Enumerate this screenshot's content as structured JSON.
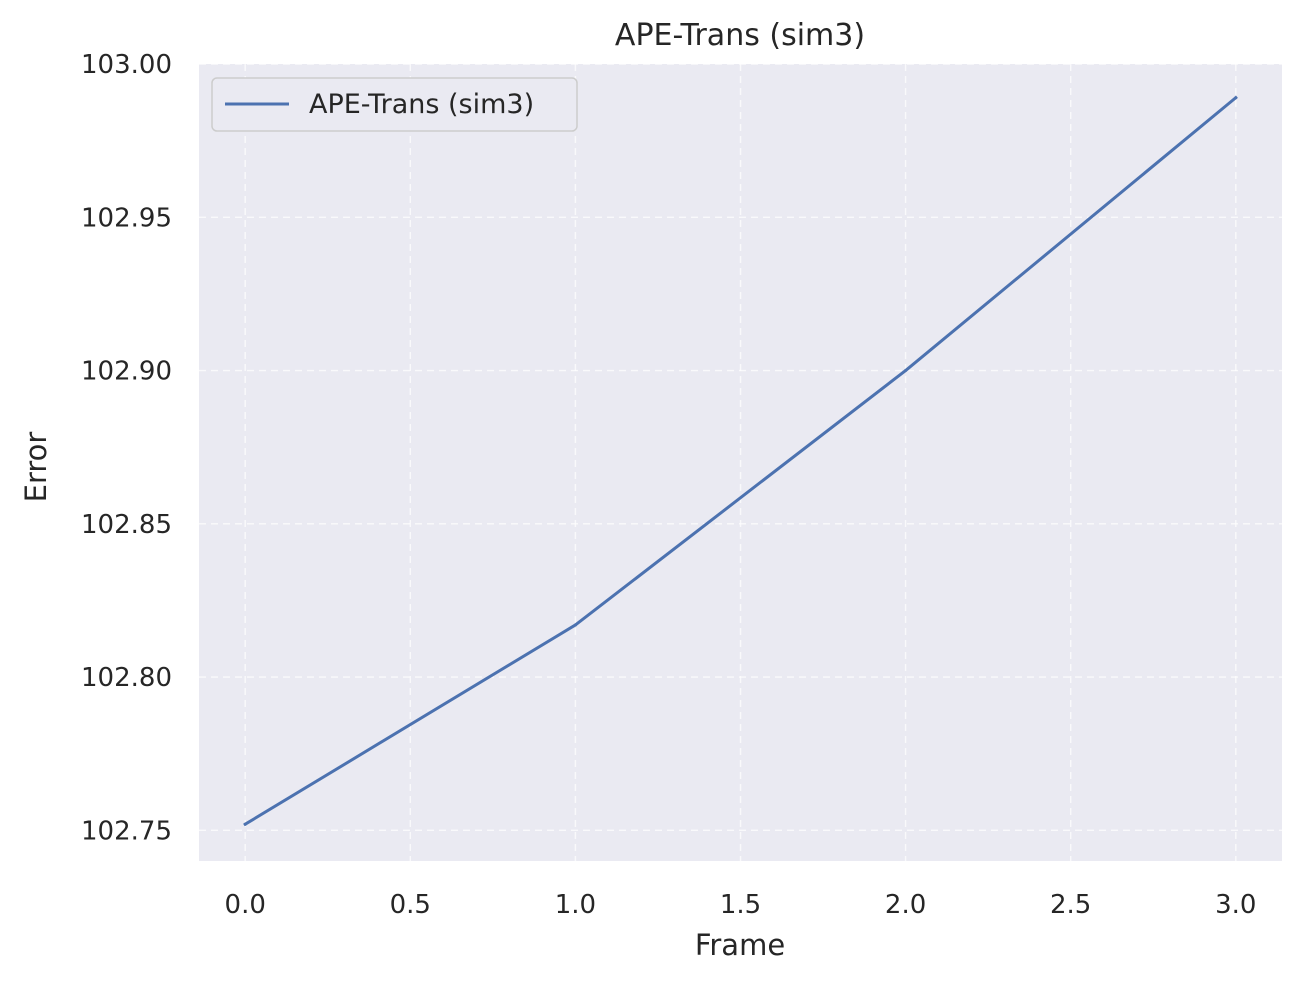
{
  "chart_data": {
    "type": "line",
    "title": "APE-Trans (sim3)",
    "xlabel": "Frame",
    "ylabel": "Error",
    "xlim": [
      -0.14,
      3.14
    ],
    "ylim": [
      102.74,
      103.0
    ],
    "x_ticks": [
      0.0,
      0.5,
      1.0,
      1.5,
      2.0,
      2.5,
      3.0
    ],
    "x_tick_labels": [
      "0.0",
      "0.5",
      "1.0",
      "1.5",
      "2.0",
      "2.5",
      "3.0"
    ],
    "y_ticks": [
      102.75,
      102.8,
      102.85,
      102.9,
      102.95,
      103.0
    ],
    "y_tick_labels": [
      "102.75",
      "102.80",
      "102.85",
      "102.90",
      "102.95",
      "103.00"
    ],
    "grid": true,
    "legend_position": "top-left",
    "background_color": "#eaeaf2",
    "series": [
      {
        "name": "APE-Trans (sim3)",
        "color": "#4c72b0",
        "x": [
          0,
          1,
          2,
          3
        ],
        "y": [
          102.752,
          102.817,
          102.9,
          102.989
        ]
      }
    ]
  }
}
